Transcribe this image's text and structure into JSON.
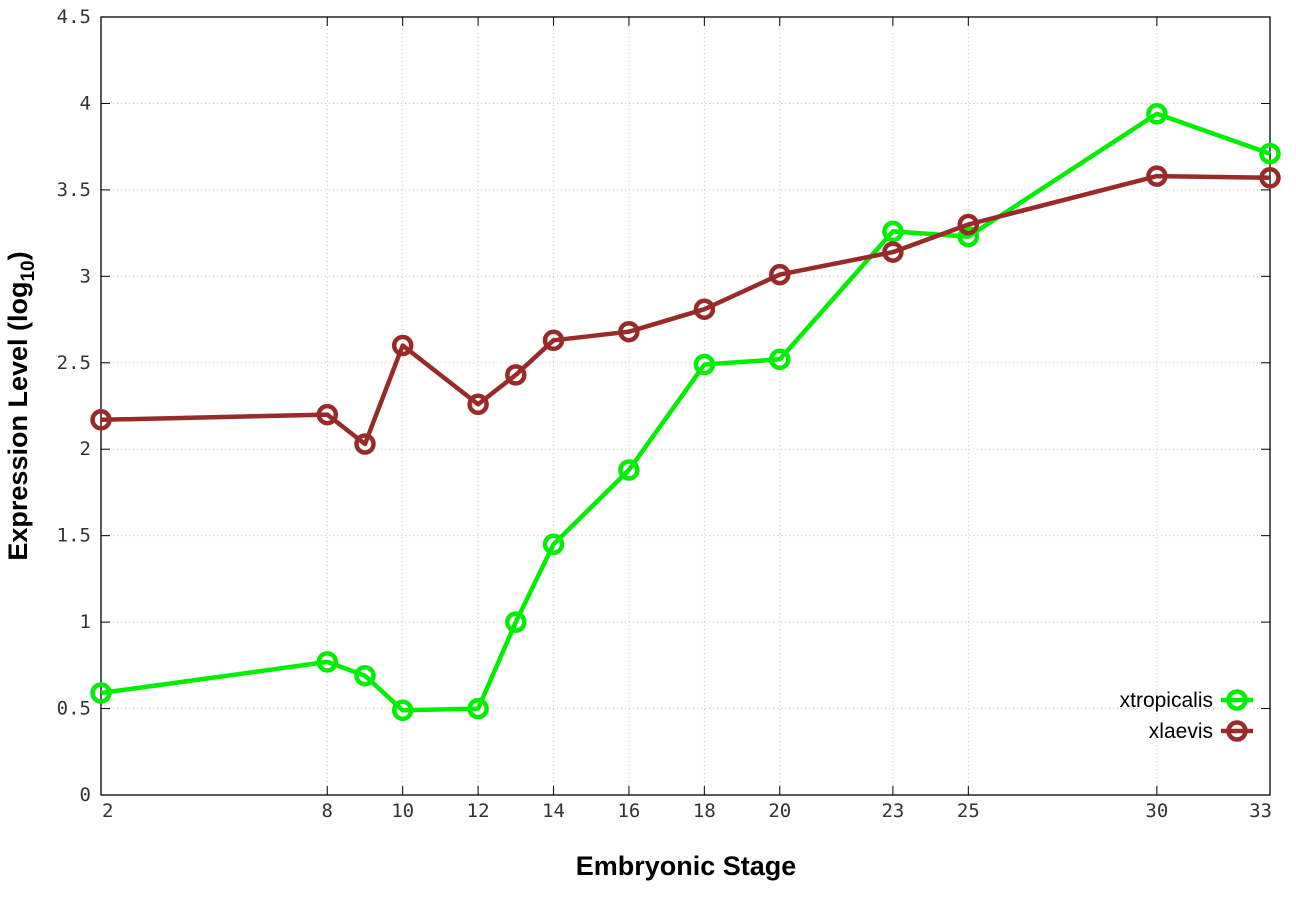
{
  "chart_data": {
    "type": "line",
    "xlabel": "Embryonic Stage",
    "ylabel_main": "Expression Level (log",
    "ylabel_sub": "10",
    "ylabel_close": ")",
    "xlim": [
      2,
      33
    ],
    "ylim": [
      0,
      4.5
    ],
    "x_ticks": [
      2,
      8,
      10,
      12,
      14,
      16,
      18,
      20,
      23,
      25,
      30,
      33
    ],
    "y_ticks": [
      0,
      0.5,
      1,
      1.5,
      2,
      2.5,
      3,
      3.5,
      4,
      4.5
    ],
    "y_tick_labels": [
      "0",
      "0.5",
      "1",
      "1.5",
      "2",
      "2.5",
      "3",
      "3.5",
      "4",
      "4.5"
    ],
    "grid": true,
    "legend_position": "bottom-right",
    "x": [
      2,
      8,
      9,
      10,
      12,
      13,
      14,
      16,
      18,
      20,
      23,
      25,
      30,
      33
    ],
    "series": [
      {
        "name": "xtropicalis",
        "color": "#00ee00",
        "values": [
          0.59,
          0.77,
          0.69,
          0.49,
          0.5,
          1.0,
          1.45,
          1.88,
          2.49,
          2.52,
          3.26,
          3.23,
          3.94,
          3.71
        ]
      },
      {
        "name": "xlaevis",
        "color": "#992a2a",
        "values": [
          2.17,
          2.2,
          2.03,
          2.6,
          2.26,
          2.43,
          2.63,
          2.68,
          2.81,
          3.01,
          3.14,
          3.3,
          3.58,
          3.57
        ]
      }
    ]
  }
}
